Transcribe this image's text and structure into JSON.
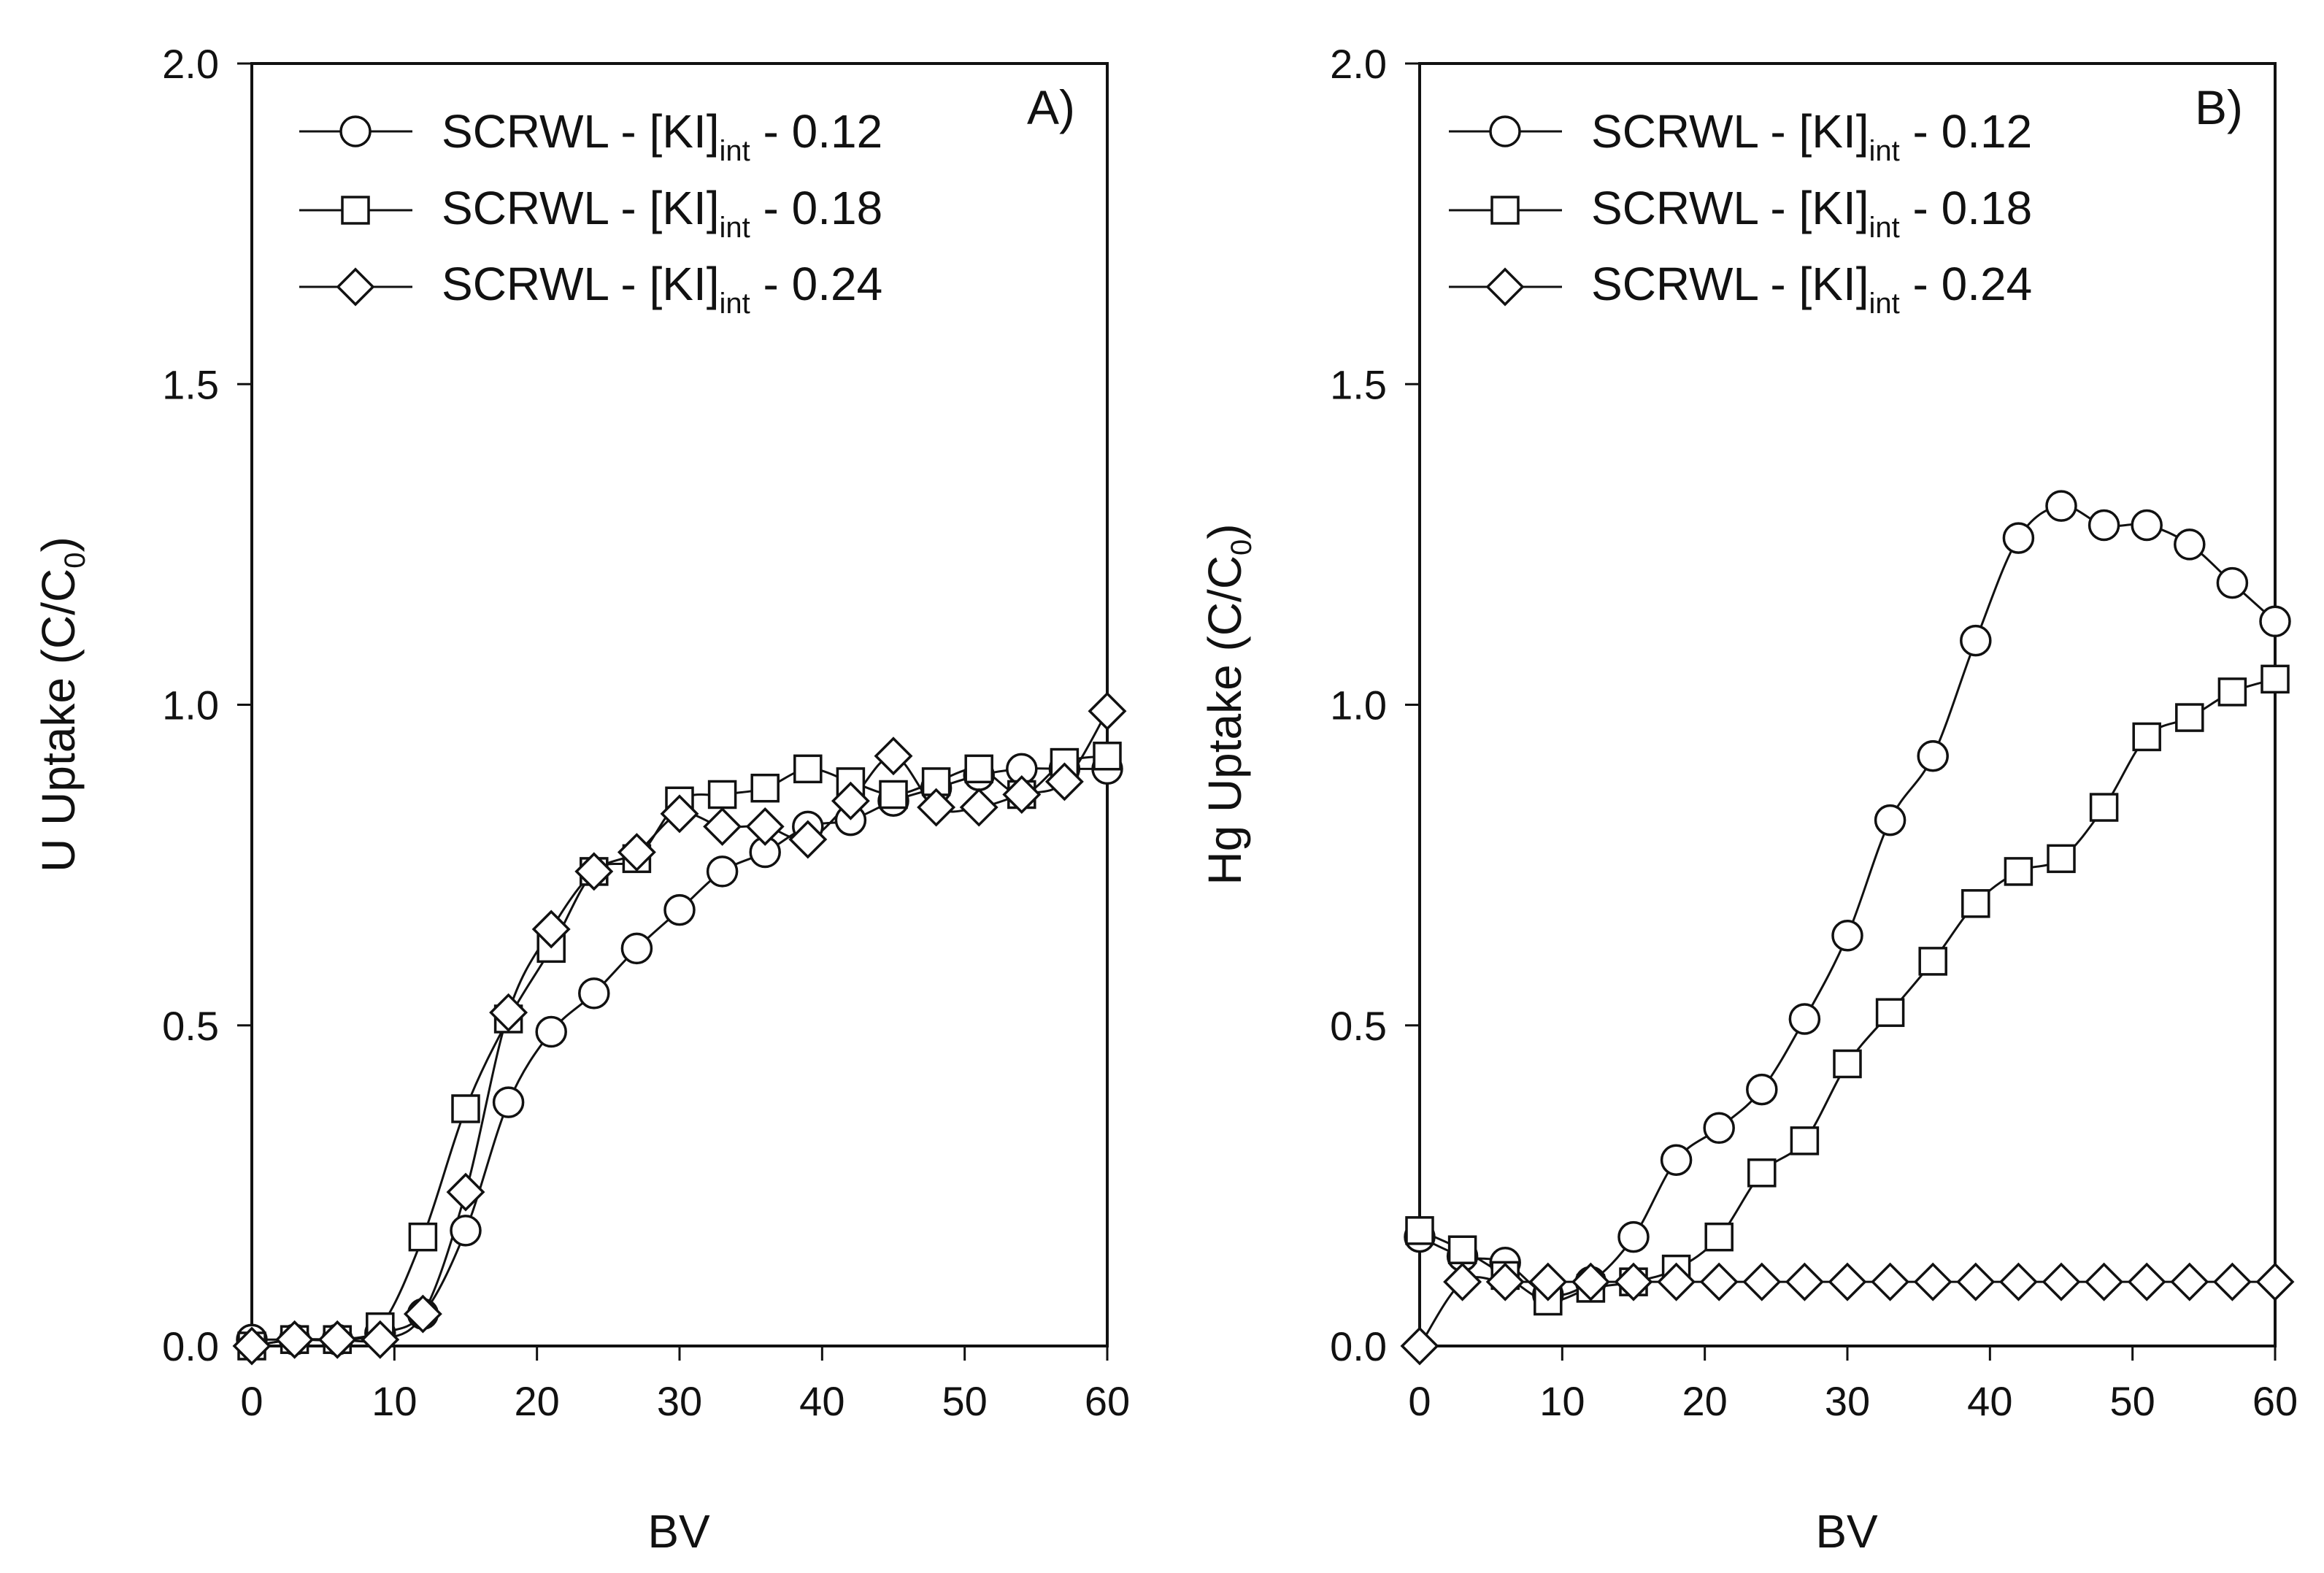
{
  "chart_data": [
    {
      "type": "line",
      "panel_label": "A)",
      "xlabel": "BV",
      "ylabel_main": "U Uptake (C/C",
      "ylabel_sub": "0",
      "ylabel_close": ")",
      "xlim": [
        0,
        60
      ],
      "ylim": [
        0,
        2
      ],
      "xticks": [
        "0",
        "10",
        "20",
        "30",
        "40",
        "50",
        "60"
      ],
      "yticks": [
        "0.0",
        "0.5",
        "1.0",
        "1.5",
        "2.0"
      ],
      "grid": false,
      "legend_position": "top-left",
      "series": [
        {
          "legend_prefix": "SCRWL - [KI]",
          "legend_sub": "int",
          "legend_suffix": " - 0.12",
          "marker": "circle",
          "x": [
            0,
            3,
            6,
            9,
            12,
            15,
            18,
            21,
            24,
            27,
            30,
            33,
            36,
            39,
            42,
            45,
            48,
            51,
            54,
            57,
            60
          ],
          "y": [
            0.01,
            0.01,
            0.01,
            0.02,
            0.05,
            0.18,
            0.38,
            0.49,
            0.55,
            0.62,
            0.68,
            0.74,
            0.77,
            0.81,
            0.82,
            0.85,
            0.87,
            0.89,
            0.9,
            0.9,
            0.9
          ]
        },
        {
          "legend_prefix": "SCRWL - [KI]",
          "legend_sub": "int",
          "legend_suffix": " - 0.18",
          "marker": "square",
          "x": [
            0,
            3,
            6,
            9,
            12,
            15,
            18,
            21,
            24,
            27,
            30,
            33,
            36,
            39,
            42,
            45,
            48,
            51,
            54,
            57,
            60
          ],
          "y": [
            0.0,
            0.01,
            0.01,
            0.03,
            0.17,
            0.37,
            0.51,
            0.62,
            0.74,
            0.76,
            0.85,
            0.86,
            0.87,
            0.9,
            0.88,
            0.86,
            0.88,
            0.9,
            0.86,
            0.91,
            0.92
          ]
        },
        {
          "legend_prefix": "SCRWL - [KI]",
          "legend_sub": "int",
          "legend_suffix": " - 0.24",
          "marker": "diamond",
          "x": [
            0,
            3,
            6,
            9,
            12,
            15,
            18,
            21,
            24,
            27,
            30,
            33,
            36,
            39,
            42,
            45,
            48,
            51,
            54,
            57,
            60
          ],
          "y": [
            0.0,
            0.01,
            0.01,
            0.01,
            0.05,
            0.24,
            0.52,
            0.65,
            0.74,
            0.77,
            0.83,
            0.81,
            0.81,
            0.79,
            0.85,
            0.92,
            0.84,
            0.84,
            0.86,
            0.88,
            0.99
          ]
        }
      ]
    },
    {
      "type": "line",
      "panel_label": "B)",
      "xlabel": "BV",
      "ylabel_main": "Hg Uptake (C/C",
      "ylabel_sub": "0",
      "ylabel_close": ")",
      "xlim": [
        0,
        60
      ],
      "ylim": [
        0,
        2
      ],
      "xticks": [
        "0",
        "10",
        "20",
        "30",
        "40",
        "50",
        "60"
      ],
      "yticks": [
        "0.0",
        "0.5",
        "1.0",
        "1.5",
        "2.0"
      ],
      "grid": false,
      "legend_position": "top-left",
      "series": [
        {
          "legend_prefix": "SCRWL - [KI]",
          "legend_sub": "int",
          "legend_suffix": " - 0.12",
          "marker": "circle",
          "x": [
            0,
            3,
            6,
            9,
            12,
            15,
            18,
            21,
            24,
            27,
            30,
            33,
            36,
            39,
            42,
            45,
            48,
            51,
            54,
            57,
            60
          ],
          "y": [
            0.17,
            0.14,
            0.13,
            0.08,
            0.1,
            0.17,
            0.29,
            0.34,
            0.4,
            0.51,
            0.64,
            0.82,
            0.92,
            1.1,
            1.26,
            1.31,
            1.28,
            1.28,
            1.25,
            1.19,
            1.13
          ]
        },
        {
          "legend_prefix": "SCRWL - [KI]",
          "legend_sub": "int",
          "legend_suffix": " - 0.18",
          "marker": "square",
          "x": [
            0,
            3,
            6,
            9,
            12,
            15,
            18,
            21,
            24,
            27,
            30,
            33,
            36,
            39,
            42,
            45,
            48,
            51,
            54,
            57,
            60
          ],
          "y": [
            0.18,
            0.15,
            0.11,
            0.07,
            0.09,
            0.1,
            0.12,
            0.17,
            0.27,
            0.32,
            0.44,
            0.52,
            0.6,
            0.69,
            0.74,
            0.76,
            0.84,
            0.95,
            0.98,
            1.02,
            1.04
          ]
        },
        {
          "legend_prefix": "SCRWL - [KI]",
          "legend_sub": "int",
          "legend_suffix": " - 0.24",
          "marker": "diamond",
          "x": [
            0,
            3,
            6,
            9,
            12,
            15,
            18,
            21,
            24,
            27,
            30,
            33,
            36,
            39,
            42,
            45,
            48,
            51,
            54,
            57,
            60
          ],
          "y": [
            0.0,
            0.1,
            0.1,
            0.1,
            0.1,
            0.1,
            0.1,
            0.1,
            0.1,
            0.1,
            0.1,
            0.1,
            0.1,
            0.1,
            0.1,
            0.1,
            0.1,
            0.1,
            0.1,
            0.1,
            0.1
          ]
        }
      ]
    }
  ]
}
